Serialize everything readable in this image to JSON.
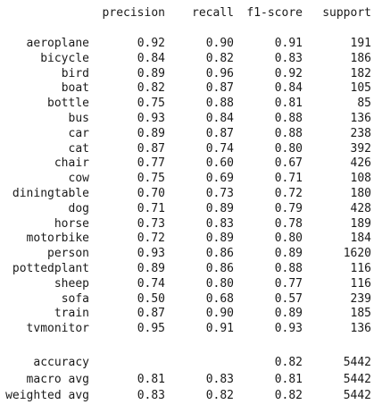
{
  "report": {
    "headers": [
      "precision",
      "recall",
      "f1-score",
      "support"
    ],
    "classes": [
      {
        "label": "aeroplane",
        "precision": "0.92",
        "recall": "0.90",
        "f1": "0.91",
        "support": "191"
      },
      {
        "label": "bicycle",
        "precision": "0.84",
        "recall": "0.82",
        "f1": "0.83",
        "support": "186"
      },
      {
        "label": "bird",
        "precision": "0.89",
        "recall": "0.96",
        "f1": "0.92",
        "support": "182"
      },
      {
        "label": "boat",
        "precision": "0.82",
        "recall": "0.87",
        "f1": "0.84",
        "support": "105"
      },
      {
        "label": "bottle",
        "precision": "0.75",
        "recall": "0.88",
        "f1": "0.81",
        "support": "85"
      },
      {
        "label": "bus",
        "precision": "0.93",
        "recall": "0.84",
        "f1": "0.88",
        "support": "136"
      },
      {
        "label": "car",
        "precision": "0.89",
        "recall": "0.87",
        "f1": "0.88",
        "support": "238"
      },
      {
        "label": "cat",
        "precision": "0.87",
        "recall": "0.74",
        "f1": "0.80",
        "support": "392"
      },
      {
        "label": "chair",
        "precision": "0.77",
        "recall": "0.60",
        "f1": "0.67",
        "support": "426"
      },
      {
        "label": "cow",
        "precision": "0.75",
        "recall": "0.69",
        "f1": "0.71",
        "support": "108"
      },
      {
        "label": "diningtable",
        "precision": "0.70",
        "recall": "0.73",
        "f1": "0.72",
        "support": "180"
      },
      {
        "label": "dog",
        "precision": "0.71",
        "recall": "0.89",
        "f1": "0.79",
        "support": "428"
      },
      {
        "label": "horse",
        "precision": "0.73",
        "recall": "0.83",
        "f1": "0.78",
        "support": "189"
      },
      {
        "label": "motorbike",
        "precision": "0.72",
        "recall": "0.89",
        "f1": "0.80",
        "support": "184"
      },
      {
        "label": "person",
        "precision": "0.93",
        "recall": "0.86",
        "f1": "0.89",
        "support": "1620"
      },
      {
        "label": "pottedplant",
        "precision": "0.89",
        "recall": "0.86",
        "f1": "0.88",
        "support": "116"
      },
      {
        "label": "sheep",
        "precision": "0.74",
        "recall": "0.80",
        "f1": "0.77",
        "support": "116"
      },
      {
        "label": "sofa",
        "precision": "0.50",
        "recall": "0.68",
        "f1": "0.57",
        "support": "239"
      },
      {
        "label": "train",
        "precision": "0.87",
        "recall": "0.90",
        "f1": "0.89",
        "support": "185"
      },
      {
        "label": "tvmonitor",
        "precision": "0.95",
        "recall": "0.91",
        "f1": "0.93",
        "support": "136"
      }
    ],
    "summary": [
      {
        "label": "accuracy",
        "precision": "",
        "recall": "",
        "f1": "0.82",
        "support": "5442"
      },
      {
        "label": "macro avg",
        "precision": "0.81",
        "recall": "0.83",
        "f1": "0.81",
        "support": "5442"
      },
      {
        "label": "weighted avg",
        "precision": "0.83",
        "recall": "0.82",
        "f1": "0.82",
        "support": "5442"
      }
    ]
  }
}
